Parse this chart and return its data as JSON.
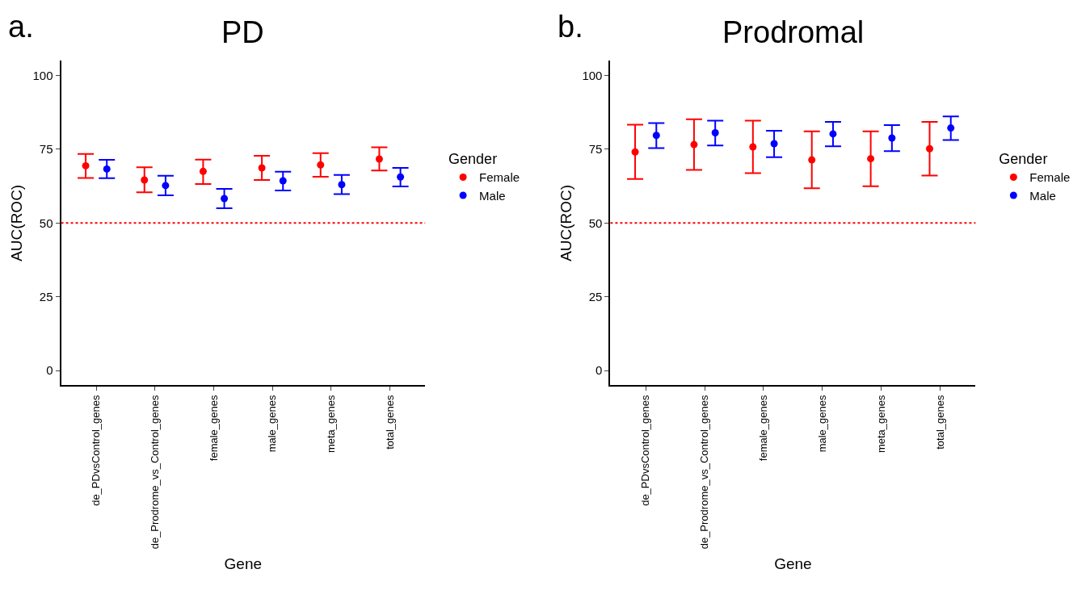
{
  "chart_data": [
    {
      "type": "scatter",
      "title": "PD",
      "xlabel": "Gene",
      "ylabel": "AUC(ROC)",
      "legend_title": "Gender",
      "annotations": [
        "a."
      ],
      "categories": [
        "de_PDvsControl_genes",
        "de_Prodrome_vs_Control_genes",
        "female_genes",
        "male_genes",
        "meta_genes",
        "total_genes"
      ],
      "series": [
        {
          "name": "Female",
          "color": "#ff0000",
          "values": [
            69.4,
            64.6,
            67.5,
            68.7,
            69.7,
            71.7
          ],
          "errors": [
            [
              65.3,
              73.4
            ],
            [
              60.4,
              68.9
            ],
            [
              63.2,
              71.5
            ],
            [
              64.6,
              72.8
            ],
            [
              65.7,
              73.7
            ],
            [
              67.8,
              75.7
            ]
          ]
        },
        {
          "name": "Male",
          "color": "#0000ff",
          "values": [
            68.3,
            62.7,
            58.3,
            64.3,
            63.0,
            65.6
          ],
          "errors": [
            [
              65.2,
              71.4
            ],
            [
              59.4,
              66.0
            ],
            [
              55.0,
              61.6
            ],
            [
              61.0,
              67.4
            ],
            [
              59.8,
              66.3
            ],
            [
              62.4,
              68.7
            ]
          ]
        }
      ],
      "ylim": [
        -5,
        105
      ],
      "yticks": [
        0,
        25,
        50,
        75,
        100
      ],
      "ref_lines": [
        {
          "axis": "y",
          "value": 50,
          "color": "#ff0000",
          "line_style": "dotted"
        }
      ],
      "marker": "circle",
      "legend": "right"
    },
    {
      "type": "scatter",
      "title": "Prodromal",
      "xlabel": "Gene",
      "ylabel": "AUC(ROC)",
      "legend_title": "Gender",
      "annotations": [
        "b."
      ],
      "categories": [
        "de_PDvsControl_genes",
        "de_Prodrome_vs_Control_genes",
        "female_genes",
        "male_genes",
        "meta_genes",
        "total_genes"
      ],
      "series": [
        {
          "name": "Female",
          "color": "#ff0000",
          "values": [
            74.1,
            76.6,
            75.8,
            71.4,
            71.8,
            75.2
          ],
          "errors": [
            [
              64.9,
              83.3
            ],
            [
              68.0,
              85.2
            ],
            [
              66.9,
              84.7
            ],
            [
              61.8,
              81.1
            ],
            [
              62.5,
              81.1
            ],
            [
              66.1,
              84.3
            ]
          ]
        },
        {
          "name": "Male",
          "color": "#0000ff",
          "values": [
            79.7,
            80.6,
            76.9,
            80.2,
            78.8,
            82.2
          ],
          "errors": [
            [
              75.4,
              83.9
            ],
            [
              76.3,
              84.7
            ],
            [
              72.3,
              81.3
            ],
            [
              76.0,
              84.3
            ],
            [
              74.4,
              83.2
            ],
            [
              78.1,
              86.1
            ]
          ]
        }
      ],
      "ylim": [
        -5,
        105
      ],
      "yticks": [
        0,
        25,
        50,
        75,
        100
      ],
      "ref_lines": [
        {
          "axis": "y",
          "value": 50,
          "color": "#ff0000",
          "line_style": "dotted"
        }
      ],
      "marker": "circle",
      "legend": "right"
    }
  ]
}
